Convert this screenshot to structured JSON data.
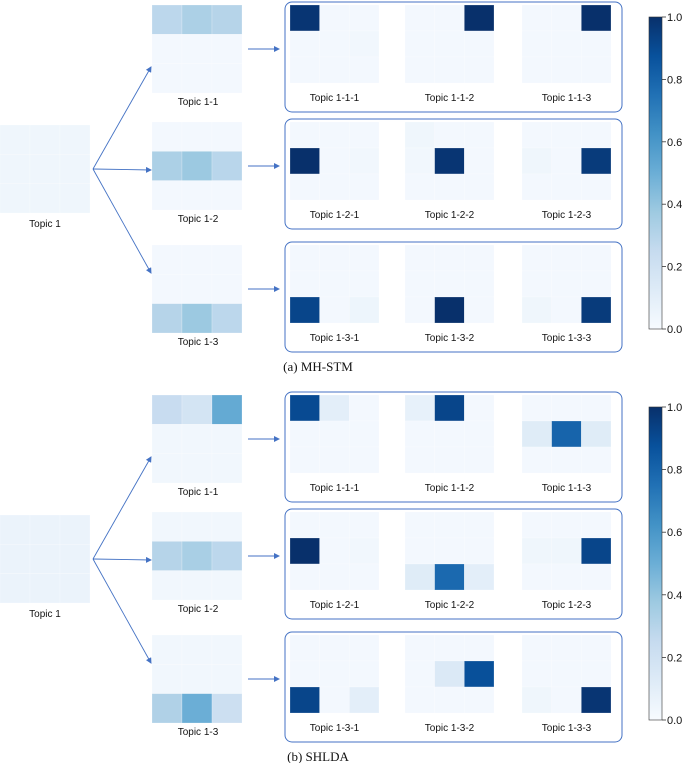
{
  "colors": {
    "arrow": "#4472c4",
    "box_border": "#4472c4",
    "colormap": [
      "#f7fbff",
      "#deebf7",
      "#c6dbef",
      "#9ecae1",
      "#6baed6",
      "#4292c6",
      "#2171b5",
      "#08519c",
      "#08306b"
    ]
  },
  "colorbar": {
    "ticks": [
      "0.0",
      "0.2",
      "0.4",
      "0.6",
      "0.8",
      "1.0"
    ],
    "min": 0,
    "max": 1
  },
  "panels": [
    {
      "caption": "(a)  MH-STM",
      "root": {
        "label": "Topic 1",
        "matrix": [
          [
            0.04,
            0.04,
            0.04
          ],
          [
            0.04,
            0.04,
            0.04
          ],
          [
            0.04,
            0.04,
            0.04
          ]
        ]
      },
      "children": [
        {
          "label": "Topic 1-1",
          "matrix": [
            [
              0.28,
              0.33,
              0.3
            ],
            [
              0.02,
              0.02,
              0.02
            ],
            [
              0.02,
              0.02,
              0.02
            ]
          ],
          "grandchildren": [
            {
              "label": "Topic 1-1-1",
              "matrix": [
                [
                  0.98,
                  0.02,
                  0.02
                ],
                [
                  0.02,
                  0.02,
                  0.03
                ],
                [
                  0.02,
                  0.02,
                  0.02
                ]
              ]
            },
            {
              "label": "Topic 1-1-2",
              "matrix": [
                [
                  0.02,
                  0.02,
                  1.0
                ],
                [
                  0.02,
                  0.02,
                  0.02
                ],
                [
                  0.02,
                  0.02,
                  0.02
                ]
              ]
            },
            {
              "label": "Topic 1-1-3",
              "matrix": [
                [
                  0.02,
                  0.02,
                  1.0
                ],
                [
                  0.02,
                  0.02,
                  0.02
                ],
                [
                  0.02,
                  0.02,
                  0.02
                ]
              ]
            }
          ]
        },
        {
          "label": "Topic 1-2",
          "matrix": [
            [
              0.02,
              0.02,
              0.02
            ],
            [
              0.33,
              0.38,
              0.29
            ],
            [
              0.02,
              0.02,
              0.02
            ]
          ],
          "grandchildren": [
            {
              "label": "Topic 1-2-1",
              "matrix": [
                [
                  0.02,
                  0.02,
                  0.02
                ],
                [
                  1.0,
                  0.02,
                  0.03
                ],
                [
                  0.02,
                  0.02,
                  0.02
                ]
              ]
            },
            {
              "label": "Topic 1-2-2",
              "matrix": [
                [
                  0.04,
                  0.02,
                  0.02
                ],
                [
                  0.03,
                  0.98,
                  0.02
                ],
                [
                  0.02,
                  0.02,
                  0.02
                ]
              ]
            },
            {
              "label": "Topic 1-2-3",
              "matrix": [
                [
                  0.02,
                  0.02,
                  0.02
                ],
                [
                  0.04,
                  0.02,
                  0.96
                ],
                [
                  0.02,
                  0.02,
                  0.02
                ]
              ]
            }
          ]
        },
        {
          "label": "Topic 1-3",
          "matrix": [
            [
              0.02,
              0.02,
              0.02
            ],
            [
              0.02,
              0.02,
              0.02
            ],
            [
              0.3,
              0.38,
              0.28
            ]
          ],
          "grandchildren": [
            {
              "label": "Topic 1-3-1",
              "matrix": [
                [
                  0.02,
                  0.02,
                  0.02
                ],
                [
                  0.02,
                  0.02,
                  0.02
                ],
                [
                  0.92,
                  0.02,
                  0.05
                ]
              ]
            },
            {
              "label": "Topic 1-3-2",
              "matrix": [
                [
                  0.02,
                  0.02,
                  0.02
                ],
                [
                  0.02,
                  0.02,
                  0.02
                ],
                [
                  0.02,
                  1.0,
                  0.02
                ]
              ]
            },
            {
              "label": "Topic 1-3-3",
              "matrix": [
                [
                  0.02,
                  0.02,
                  0.02
                ],
                [
                  0.02,
                  0.02,
                  0.02
                ],
                [
                  0.04,
                  0.02,
                  0.96
                ]
              ]
            }
          ]
        }
      ]
    },
    {
      "caption": "(b)  SHLDA",
      "root": {
        "label": "Topic 1",
        "matrix": [
          [
            0.06,
            0.06,
            0.06
          ],
          [
            0.06,
            0.06,
            0.06
          ],
          [
            0.06,
            0.06,
            0.06
          ]
        ]
      },
      "children": [
        {
          "label": "Topic 1-1",
          "matrix": [
            [
              0.24,
              0.18,
              0.52
            ],
            [
              0.03,
              0.03,
              0.03
            ],
            [
              0.03,
              0.03,
              0.03
            ]
          ],
          "grandchildren": [
            {
              "label": "Topic 1-1-1",
              "matrix": [
                [
                  0.9,
                  0.1,
                  0.02
                ],
                [
                  0.02,
                  0.02,
                  0.02
                ],
                [
                  0.02,
                  0.02,
                  0.02
                ]
              ]
            },
            {
              "label": "Topic 1-1-2",
              "matrix": [
                [
                  0.08,
                  0.92,
                  0.02
                ],
                [
                  0.02,
                  0.02,
                  0.02
                ],
                [
                  0.02,
                  0.02,
                  0.02
                ]
              ]
            },
            {
              "label": "Topic 1-1-3",
              "matrix": [
                [
                  0.02,
                  0.02,
                  0.02
                ],
                [
                  0.12,
                  0.8,
                  0.12
                ],
                [
                  0.02,
                  0.02,
                  0.02
                ]
              ]
            }
          ]
        },
        {
          "label": "Topic 1-2",
          "matrix": [
            [
              0.03,
              0.03,
              0.03
            ],
            [
              0.3,
              0.34,
              0.28
            ],
            [
              0.03,
              0.03,
              0.03
            ]
          ],
          "grandchildren": [
            {
              "label": "Topic 1-2-1",
              "matrix": [
                [
                  0.02,
                  0.02,
                  0.02
                ],
                [
                  1.0,
                  0.02,
                  0.03
                ],
                [
                  0.02,
                  0.02,
                  0.02
                ]
              ]
            },
            {
              "label": "Topic 1-2-2",
              "matrix": [
                [
                  0.02,
                  0.02,
                  0.02
                ],
                [
                  0.02,
                  0.02,
                  0.02
                ],
                [
                  0.12,
                  0.78,
                  0.1
                ]
              ]
            },
            {
              "label": "Topic 1-2-3",
              "matrix": [
                [
                  0.02,
                  0.02,
                  0.02
                ],
                [
                  0.04,
                  0.04,
                  0.92
                ],
                [
                  0.02,
                  0.02,
                  0.02
                ]
              ]
            }
          ]
        },
        {
          "label": "Topic 1-3",
          "matrix": [
            [
              0.03,
              0.03,
              0.03
            ],
            [
              0.03,
              0.03,
              0.03
            ],
            [
              0.32,
              0.5,
              0.22
            ]
          ],
          "grandchildren": [
            {
              "label": "Topic 1-3-1",
              "matrix": [
                [
                  0.02,
                  0.02,
                  0.02
                ],
                [
                  0.02,
                  0.02,
                  0.02
                ],
                [
                  0.92,
                  0.02,
                  0.1
                ]
              ]
            },
            {
              "label": "Topic 1-3-2",
              "matrix": [
                [
                  0.02,
                  0.02,
                  0.02
                ],
                [
                  0.02,
                  0.14,
                  0.88
                ],
                [
                  0.02,
                  0.02,
                  0.02
                ]
              ]
            },
            {
              "label": "Topic 1-3-3",
              "matrix": [
                [
                  0.02,
                  0.02,
                  0.02
                ],
                [
                  0.02,
                  0.02,
                  0.02
                ],
                [
                  0.04,
                  0.02,
                  0.98
                ]
              ]
            }
          ]
        }
      ]
    }
  ]
}
